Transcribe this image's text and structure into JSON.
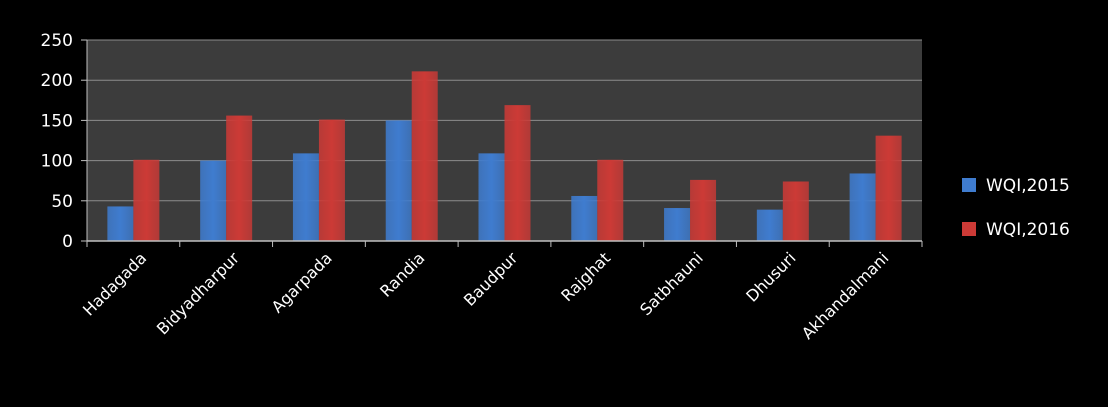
{
  "chart_data": {
    "type": "bar",
    "title": "",
    "xlabel": "",
    "ylabel": "",
    "categories": [
      "Hadagada",
      "Bidyadharpur",
      "Agarpada",
      "Randia",
      "Baudpur",
      "Rajghat",
      "Satbhauni",
      "Dhusuri",
      "Akhandalmani"
    ],
    "series": [
      {
        "name": "WQI,2015",
        "color": "#3f7ccf",
        "values": [
          43,
          100,
          109,
          150,
          109,
          56,
          41,
          39,
          84
        ]
      },
      {
        "name": "WQI,2016",
        "color": "#cc3a36",
        "values": [
          101,
          156,
          151,
          211,
          169,
          101,
          76,
          74,
          131
        ]
      }
    ],
    "ylim": [
      0,
      250
    ],
    "yticks": [
      0,
      50,
      100,
      150,
      200,
      250
    ],
    "grid": true,
    "legend_position": "right",
    "plot_background": "#3c3c3c",
    "page_background": "#000000",
    "text_color": "#ffffff"
  }
}
